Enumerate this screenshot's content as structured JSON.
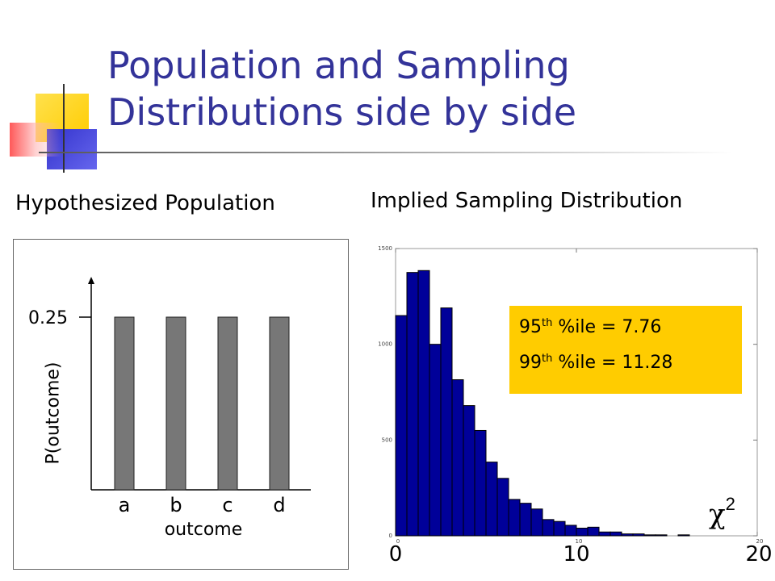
{
  "slide": {
    "title_line1": "Population and Sampling",
    "title_line2": "Distributions side by side",
    "colors": {
      "title": "#333399",
      "bar_fill": "#000099",
      "pop_bar": "#777777",
      "callout": "#ffcc00"
    }
  },
  "population": {
    "heading": "Hypothesized Population",
    "ylabel": "P(outcome)",
    "xlabel": "outcome"
  },
  "sampling": {
    "heading": "Implied Sampling Distribution",
    "chi_symbol": "χ",
    "chi_sup": "2",
    "pct95": {
      "ordinal": "95",
      "suffix": "th",
      "text": " %ile =  7.76"
    },
    "pct99": {
      "ordinal": "99",
      "suffix": "th",
      "text": " %ile = 11.28"
    }
  },
  "chart_data": [
    {
      "type": "bar",
      "categories": [
        "a",
        "b",
        "c",
        "d"
      ],
      "values": [
        0.25,
        0.25,
        0.25,
        0.25
      ],
      "yticks": [
        "0.25"
      ],
      "xlabel": "outcome",
      "ylabel": "P(outcome)",
      "ylim": [
        0,
        0.3
      ]
    },
    {
      "type": "bar",
      "subtype": "histogram",
      "bin_width": 0.625,
      "x_start": 0,
      "values": [
        1150,
        1375,
        1385,
        1000,
        1190,
        815,
        680,
        550,
        385,
        300,
        190,
        170,
        140,
        85,
        75,
        55,
        40,
        45,
        20,
        20,
        10,
        10,
        5,
        5,
        0,
        5,
        0,
        0,
        0,
        0,
        0,
        0
      ],
      "xlim": [
        0,
        20
      ],
      "ylim": [
        0,
        1500
      ],
      "xticks_small": [
        "0",
        "10",
        "20"
      ],
      "yticks_small": [
        "0",
        "500",
        "1000",
        "1500"
      ],
      "xticks_large": [
        "0",
        "10",
        "20"
      ],
      "annotation_95th_percentile": 7.76,
      "annotation_99th_percentile": 11.28
    }
  ]
}
